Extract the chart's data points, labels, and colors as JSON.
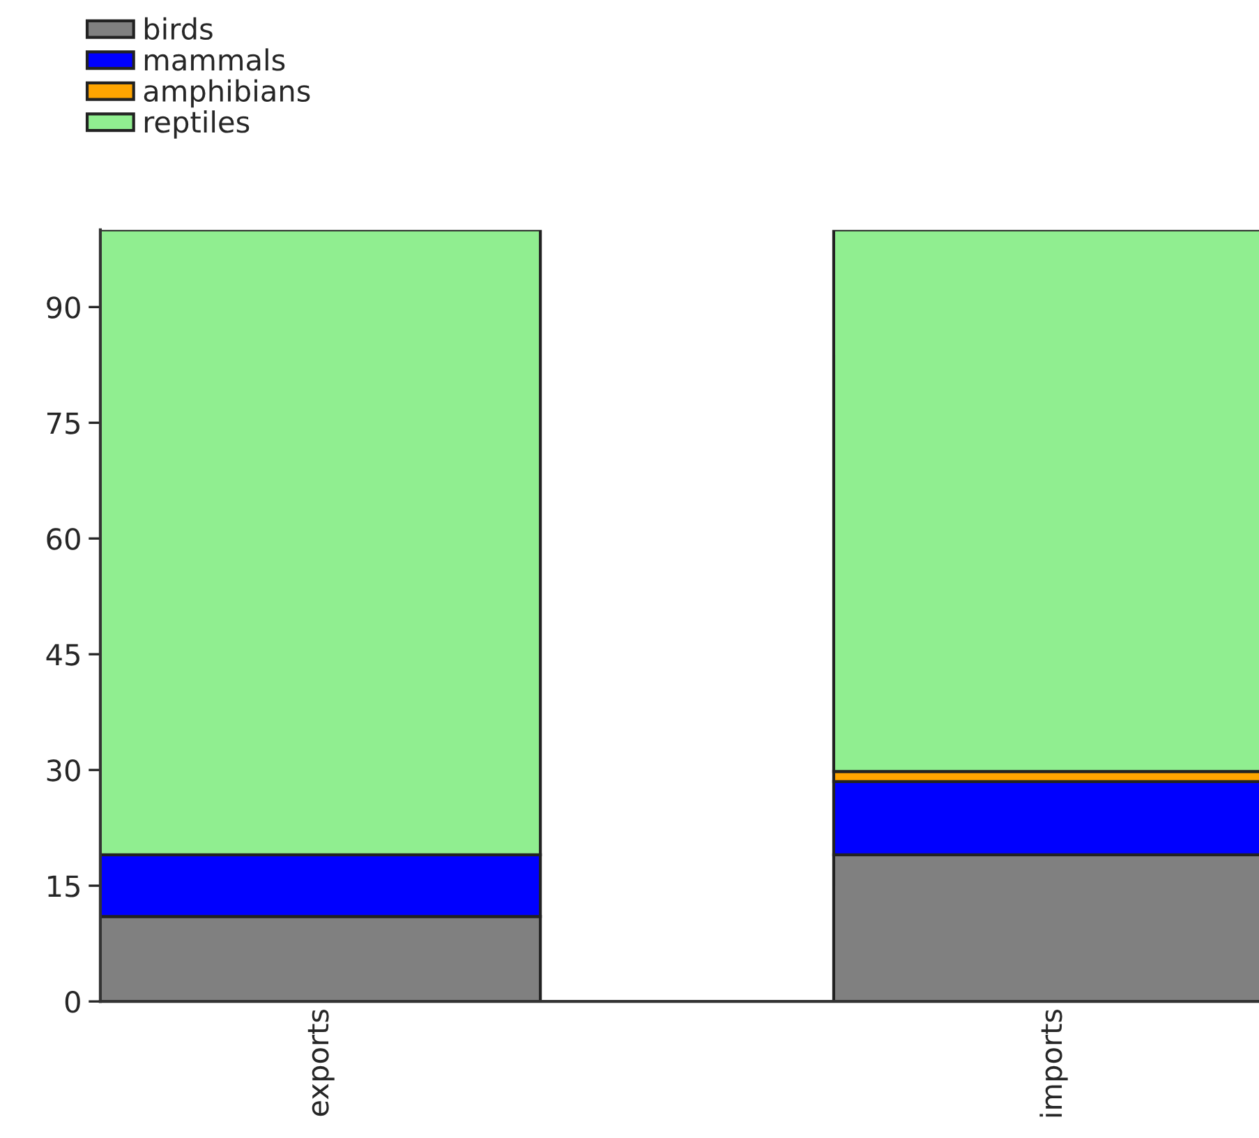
{
  "chart_data": {
    "type": "bar",
    "stacked": true,
    "categories": [
      "exports",
      "imports"
    ],
    "series": [
      {
        "name": "birds",
        "color": "#808080",
        "values": [
          11,
          19
        ]
      },
      {
        "name": "mammals",
        "color": "#0000ff",
        "values": [
          8,
          9.5
        ]
      },
      {
        "name": "amphibians",
        "color": "#ffa500",
        "values": [
          0,
          1.3
        ]
      },
      {
        "name": "reptiles",
        "color": "#90ee90",
        "values": [
          81,
          70.2
        ]
      }
    ],
    "ylim": [
      0,
      100
    ],
    "yticks": [
      0,
      15,
      30,
      45,
      60,
      75,
      90
    ],
    "grid": false,
    "legend": "top left"
  }
}
